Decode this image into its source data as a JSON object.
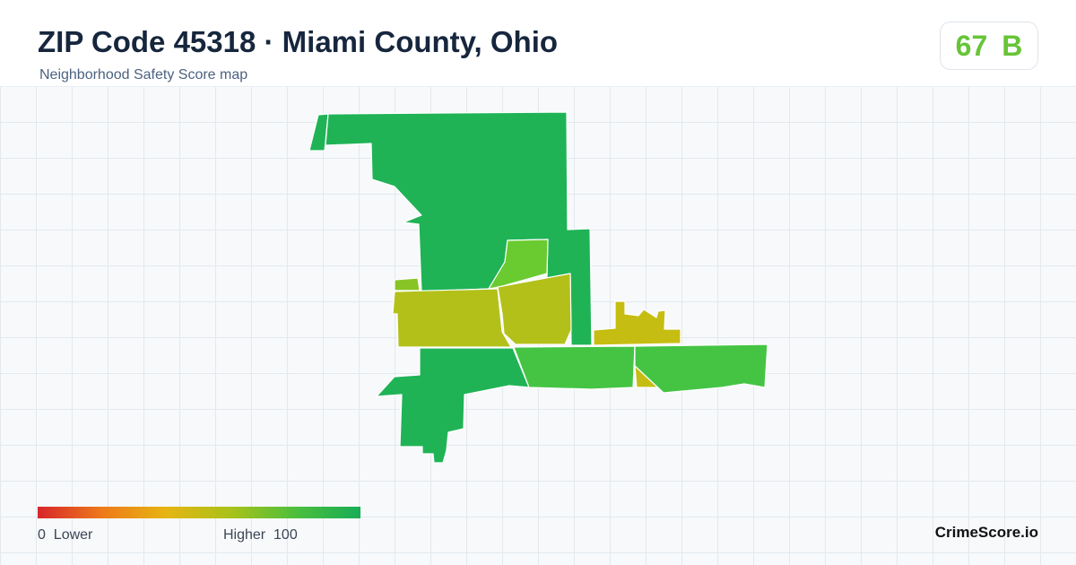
{
  "header": {
    "title": "ZIP Code 45318 · Miami County, Ohio",
    "subtitle": "Neighborhood Safety Score map"
  },
  "score": {
    "value": 67,
    "grade": "B"
  },
  "legend": {
    "min": 0,
    "min_label": "Lower",
    "max_label": "Higher",
    "max": 100
  },
  "brand": "CrimeScore.io"
}
